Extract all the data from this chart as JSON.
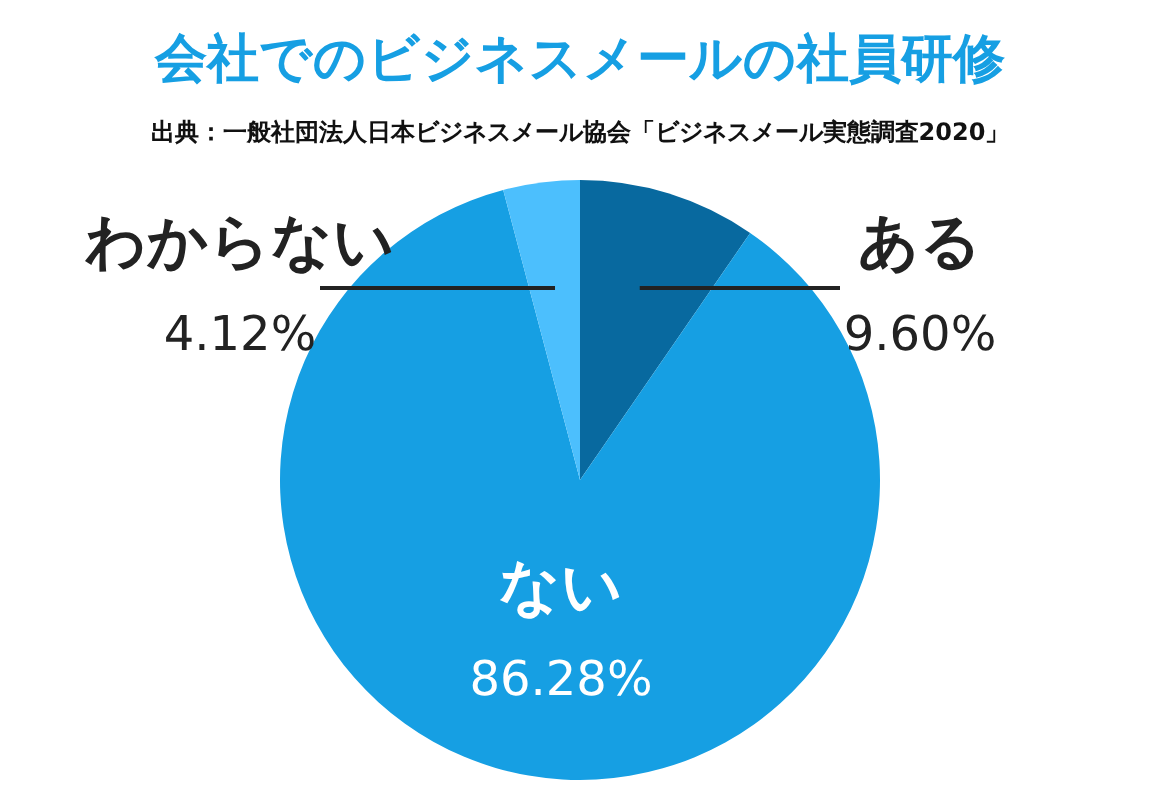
{
  "chart_data": {
    "type": "pie",
    "title": "会社でのビジネスメールの社員研修",
    "subtitle": "出典：一般社団法人日本ビジネスメール協会「ビジネスメール実態調査2020」",
    "categories": [
      "ある",
      "ない",
      "わからない"
    ],
    "values": [
      9.6,
      86.28,
      4.12
    ],
    "value_labels": [
      "9.60%",
      "86.28%",
      "4.12%"
    ],
    "colors": [
      "#08699f",
      "#169fe3",
      "#4cbffd"
    ]
  }
}
